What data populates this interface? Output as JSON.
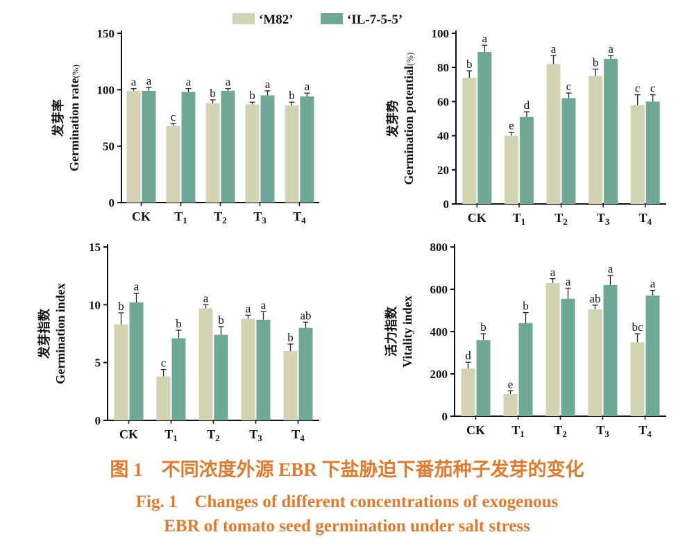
{
  "legend": {
    "series": [
      {
        "label": "‘M82’",
        "color": "#d3d3b4"
      },
      {
        "label": "‘IL-7-5-5’",
        "color": "#6fa894"
      }
    ]
  },
  "chart_data": [
    {
      "type": "bar",
      "categories": [
        "CK",
        "T1",
        "T2",
        "T3",
        "T4"
      ],
      "ylabel_cn": "发芽率",
      "ylabel": "Germination rate",
      "ylabel_unit": "(%)",
      "ylim": [
        0,
        150
      ],
      "yticks": [
        0,
        50,
        100,
        150
      ],
      "series": [
        {
          "name": "‘M82’",
          "values": [
            99,
            68,
            88,
            87,
            86
          ],
          "errors": [
            2,
            2,
            3,
            2,
            3
          ],
          "letters": [
            "a",
            "c",
            "b",
            "b",
            "b"
          ]
        },
        {
          "name": "‘IL-7-5-5’",
          "values": [
            99,
            98,
            99,
            95,
            94
          ],
          "errors": [
            3,
            3,
            2,
            4,
            3
          ],
          "letters": [
            "a",
            "a",
            "a",
            "a",
            "a"
          ]
        }
      ]
    },
    {
      "type": "bar",
      "categories": [
        "CK",
        "T1",
        "T2",
        "T3",
        "T4"
      ],
      "ylabel_cn": "发芽势",
      "ylabel": "Germination potential",
      "ylabel_unit": "(%)",
      "ylim": [
        0,
        100
      ],
      "yticks": [
        0,
        20,
        40,
        60,
        80,
        100
      ],
      "series": [
        {
          "name": "‘M82’",
          "values": [
            74,
            40,
            82,
            75,
            58
          ],
          "errors": [
            4,
            2,
            5,
            4,
            6
          ],
          "letters": [
            "b",
            "e",
            "a",
            "b",
            "c"
          ]
        },
        {
          "name": "‘IL-7-5-5’",
          "values": [
            89,
            51,
            62,
            85,
            60
          ],
          "errors": [
            4,
            3,
            3,
            2,
            4
          ],
          "letters": [
            "a",
            "d",
            "c",
            "a",
            "c"
          ]
        }
      ]
    },
    {
      "type": "bar",
      "categories": [
        "CK",
        "T1",
        "T2",
        "T3",
        "T4"
      ],
      "ylabel_cn": "发芽指数",
      "ylabel": "Germination index",
      "ylabel_unit": "",
      "ylim": [
        0,
        15
      ],
      "yticks": [
        0,
        5,
        10,
        15
      ],
      "series": [
        {
          "name": "‘M82’",
          "values": [
            8.3,
            3.8,
            9.7,
            8.8,
            6.0
          ],
          "errors": [
            1.0,
            0.6,
            0.3,
            0.3,
            0.6
          ],
          "letters": [
            "b",
            "c",
            "a",
            "a",
            "b"
          ]
        },
        {
          "name": "‘IL-7-5-5’",
          "values": [
            10.2,
            7.1,
            7.4,
            8.7,
            8.0
          ],
          "errors": [
            0.8,
            0.7,
            0.7,
            0.7,
            0.5
          ],
          "letters": [
            "a",
            "b",
            "b",
            "a",
            "ab"
          ]
        }
      ]
    },
    {
      "type": "bar",
      "categories": [
        "CK",
        "T1",
        "T2",
        "T3",
        "T4"
      ],
      "ylabel_cn": "活力指数",
      "ylabel": "Vitality index",
      "ylabel_unit": "",
      "ylim": [
        0,
        800
      ],
      "yticks": [
        0,
        200,
        400,
        600,
        800
      ],
      "series": [
        {
          "name": "‘M82’",
          "values": [
            225,
            105,
            630,
            505,
            350
          ],
          "errors": [
            30,
            15,
            20,
            20,
            40
          ],
          "letters": [
            "d",
            "e",
            "a",
            "ab",
            "bc"
          ]
        },
        {
          "name": "‘IL-7-5-5’",
          "values": [
            360,
            440,
            555,
            620,
            570
          ],
          "errors": [
            30,
            50,
            50,
            45,
            25
          ],
          "letters": [
            "b",
            "b",
            "a",
            "a",
            "a"
          ]
        }
      ]
    }
  ],
  "caption": {
    "zh": "图 1　不同浓度外源 EBR 下盐胁迫下番茄种子发芽的变化",
    "en_line1": "Fig. 1　Changes of different concentrations of exogenous",
    "en_line2": "EBR of tomato seed germination under salt stress"
  }
}
